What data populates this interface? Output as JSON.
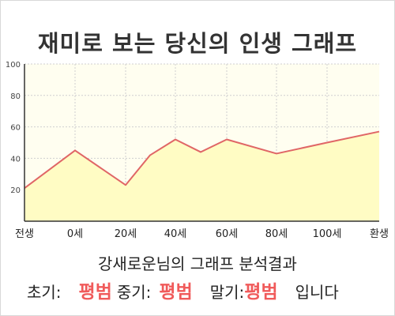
{
  "title": "재미로 보는 당신의 인생 그래프",
  "subtitle": "강새로운님의 그래프 분석결과",
  "result": {
    "early_label": "초기:",
    "early_value": "평범",
    "mid_label": "중기:",
    "mid_value": "평범",
    "late_label": "말기:",
    "late_value": "평범",
    "suffix": "입니다"
  },
  "colors": {
    "line": "#e06666",
    "fill": "#fffcc4",
    "plot_bg": "#fffef0",
    "highlight": "#f05a5a"
  },
  "chart_data": {
    "type": "area",
    "title": "재미로 보는 당신의 인생 그래프",
    "xlabel": "",
    "ylabel": "",
    "x_tick_labels": [
      "전생",
      "0세",
      "20세",
      "40세",
      "60세",
      "80세",
      "100세",
      "환생"
    ],
    "y_ticks": [
      20,
      40,
      60,
      80,
      100
    ],
    "ylim": [
      0,
      100
    ],
    "grid": true,
    "series": [
      {
        "points": [
          {
            "x": "전생",
            "y": 21
          },
          {
            "x": "0세",
            "y": 45
          },
          {
            "x": "20세",
            "y": 23
          },
          {
            "x": "30세",
            "y": 42
          },
          {
            "x": "40세",
            "y": 52
          },
          {
            "x": "50세",
            "y": 44
          },
          {
            "x": "60세",
            "y": 52
          },
          {
            "x": "80세",
            "y": 43
          },
          {
            "x": "100세",
            "y": 50
          },
          {
            "x": "환생",
            "y": 57
          }
        ]
      }
    ]
  }
}
